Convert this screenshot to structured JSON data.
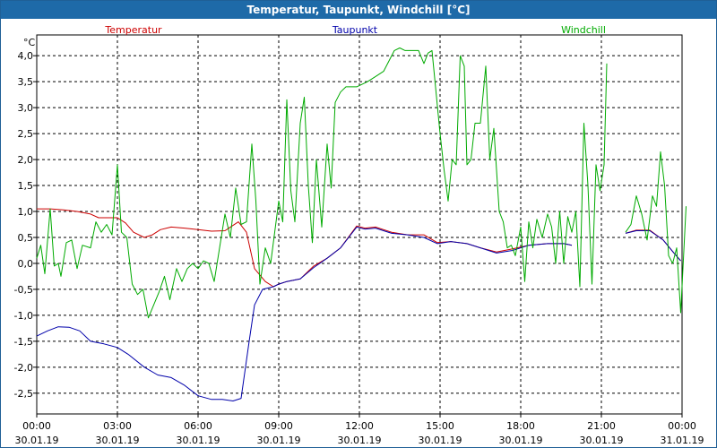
{
  "window": {
    "title": "Temperatur, Taupunkt, Windchill [°C]"
  },
  "chart_data": {
    "type": "line",
    "title": "Temperatur, Taupunkt, Windchill [°C]",
    "ylabel": "°C",
    "ylim": [
      -2.9,
      4.4
    ],
    "xlim_hours": [
      0,
      24
    ],
    "grid": true,
    "legend_position": "top",
    "y_ticks": [
      "4,0",
      "3,5",
      "3,0",
      "2,5",
      "2,0",
      "1,5",
      "1,0",
      "0,5",
      "0,0",
      "-0,5",
      "-1,0",
      "-1,5",
      "-2,0",
      "-2,5"
    ],
    "y_tick_values": [
      4.0,
      3.5,
      3.0,
      2.5,
      2.0,
      1.5,
      1.0,
      0.5,
      0.0,
      -0.5,
      -1.0,
      -1.5,
      -2.0,
      -2.5
    ],
    "x_ticks": [
      {
        "time": "00:00",
        "date": "30.01.19"
      },
      {
        "time": "03:00",
        "date": "30.01.19"
      },
      {
        "time": "06:00",
        "date": "30.01.19"
      },
      {
        "time": "09:00",
        "date": "30.01.19"
      },
      {
        "time": "12:00",
        "date": "30.01.19"
      },
      {
        "time": "15:00",
        "date": "30.01.19"
      },
      {
        "time": "18:00",
        "date": "30.01.19"
      },
      {
        "time": "21:00",
        "date": "30.01.19"
      },
      {
        "time": "00:00",
        "date": "31.01.19"
      }
    ],
    "x_tick_hours": [
      0,
      3,
      6,
      9,
      12,
      15,
      18,
      21,
      24
    ],
    "series": [
      {
        "name": "Temperatur",
        "color": "#cc0000",
        "segments": [
          [
            [
              0,
              1.05
            ],
            [
              0.5,
              1.05
            ],
            [
              1,
              1.03
            ],
            [
              1.5,
              1.0
            ],
            [
              2,
              0.95
            ],
            [
              2.3,
              0.88
            ],
            [
              2.5,
              0.88
            ],
            [
              3,
              0.88
            ],
            [
              3.3,
              0.78
            ],
            [
              3.6,
              0.6
            ],
            [
              4,
              0.5
            ],
            [
              4.3,
              0.55
            ],
            [
              4.6,
              0.65
            ],
            [
              5,
              0.7
            ],
            [
              5.5,
              0.68
            ],
            [
              6,
              0.65
            ],
            [
              6.5,
              0.62
            ],
            [
              7,
              0.63
            ],
            [
              7.5,
              0.8
            ],
            [
              7.8,
              0.6
            ],
            [
              8.1,
              -0.1
            ],
            [
              8.5,
              -0.35
            ],
            [
              8.8,
              -0.45
            ],
            [
              9,
              -0.4
            ],
            [
              9.3,
              -0.35
            ],
            [
              9.8,
              -0.3
            ],
            [
              10.3,
              -0.05
            ],
            [
              10.8,
              0.1
            ],
            [
              11.3,
              0.3
            ],
            [
              11.9,
              0.72
            ],
            [
              12.2,
              0.68
            ],
            [
              12.6,
              0.7
            ],
            [
              13.2,
              0.6
            ],
            [
              13.8,
              0.55
            ],
            [
              14.4,
              0.55
            ],
            [
              14.9,
              0.4
            ],
            [
              15.4,
              0.42
            ],
            [
              16,
              0.38
            ],
            [
              16.5,
              0.3
            ],
            [
              17.1,
              0.22
            ],
            [
              17.7,
              0.28
            ],
            [
              18.3,
              0.35
            ],
            [
              19,
              0.38
            ],
            [
              19.6,
              0.38
            ],
            [
              19.9,
              0.35
            ]
          ],
          [
            [
              21.9,
              0.58
            ],
            [
              22.3,
              0.64
            ],
            [
              22.8,
              0.64
            ],
            [
              23.3,
              0.45
            ],
            [
              23.7,
              0.2
            ],
            [
              23.95,
              0.05
            ]
          ]
        ]
      },
      {
        "name": "Taupunkt",
        "color": "#0000aa",
        "segments": [
          [
            [
              0,
              -1.4
            ],
            [
              0.4,
              -1.3
            ],
            [
              0.8,
              -1.22
            ],
            [
              1.2,
              -1.23
            ],
            [
              1.6,
              -1.3
            ],
            [
              2,
              -1.5
            ],
            [
              2.5,
              -1.55
            ],
            [
              3,
              -1.62
            ],
            [
              3.4,
              -1.75
            ],
            [
              4,
              -2.0
            ],
            [
              4.5,
              -2.15
            ],
            [
              5,
              -2.2
            ],
            [
              5.5,
              -2.35
            ],
            [
              6,
              -2.55
            ],
            [
              6.5,
              -2.62
            ],
            [
              6.9,
              -2.62
            ],
            [
              7.3,
              -2.65
            ],
            [
              7.6,
              -2.6
            ],
            [
              7.9,
              -1.5
            ],
            [
              8.1,
              -0.8
            ],
            [
              8.4,
              -0.5
            ],
            [
              8.8,
              -0.45
            ],
            [
              9,
              -0.4
            ],
            [
              9.3,
              -0.35
            ],
            [
              9.8,
              -0.3
            ],
            [
              10.3,
              -0.08
            ],
            [
              10.8,
              0.1
            ],
            [
              11.3,
              0.3
            ],
            [
              11.9,
              0.7
            ],
            [
              12.2,
              0.66
            ],
            [
              12.6,
              0.68
            ],
            [
              13.2,
              0.58
            ],
            [
              13.8,
              0.55
            ],
            [
              14.4,
              0.5
            ],
            [
              14.9,
              0.38
            ],
            [
              15.4,
              0.42
            ],
            [
              16,
              0.38
            ],
            [
              16.5,
              0.3
            ],
            [
              17.1,
              0.2
            ],
            [
              17.7,
              0.25
            ],
            [
              18.3,
              0.35
            ],
            [
              19,
              0.38
            ],
            [
              19.6,
              0.38
            ],
            [
              19.9,
              0.35
            ]
          ],
          [
            [
              21.9,
              0.58
            ],
            [
              22.3,
              0.63
            ],
            [
              22.8,
              0.63
            ],
            [
              23.3,
              0.45
            ],
            [
              23.7,
              0.2
            ],
            [
              23.95,
              0.05
            ]
          ]
        ]
      },
      {
        "name": "Windchill",
        "color": "#00aa00",
        "segments": [
          [
            [
              0,
              0.1
            ],
            [
              0.15,
              0.35
            ],
            [
              0.3,
              -0.2
            ],
            [
              0.5,
              1.05
            ],
            [
              0.65,
              -0.05
            ],
            [
              0.8,
              0.0
            ],
            [
              0.9,
              -0.25
            ],
            [
              1.1,
              0.4
            ],
            [
              1.3,
              0.45
            ],
            [
              1.5,
              -0.1
            ],
            [
              1.7,
              0.35
            ],
            [
              2,
              0.3
            ],
            [
              2.2,
              0.8
            ],
            [
              2.4,
              0.6
            ],
            [
              2.6,
              0.75
            ],
            [
              2.8,
              0.55
            ],
            [
              3,
              1.9
            ],
            [
              3.15,
              0.6
            ],
            [
              3.35,
              0.5
            ],
            [
              3.55,
              -0.4
            ],
            [
              3.75,
              -0.6
            ],
            [
              3.95,
              -0.5
            ],
            [
              4.15,
              -1.05
            ],
            [
              4.35,
              -0.8
            ],
            [
              4.55,
              -0.55
            ],
            [
              4.75,
              -0.25
            ],
            [
              4.95,
              -0.7
            ],
            [
              5.2,
              -0.1
            ],
            [
              5.4,
              -0.35
            ],
            [
              5.6,
              -0.1
            ],
            [
              5.8,
              0.0
            ],
            [
              6,
              -0.1
            ],
            [
              6.2,
              0.05
            ],
            [
              6.4,
              0.0
            ],
            [
              6.6,
              -0.35
            ],
            [
              6.8,
              0.3
            ],
            [
              7,
              0.95
            ],
            [
              7.2,
              0.5
            ],
            [
              7.4,
              1.45
            ],
            [
              7.6,
              0.75
            ],
            [
              7.8,
              0.8
            ],
            [
              8,
              2.3
            ],
            [
              8.15,
              1.2
            ],
            [
              8.3,
              -0.4
            ],
            [
              8.5,
              0.3
            ],
            [
              8.7,
              0.0
            ],
            [
              8.85,
              0.6
            ],
            [
              9,
              1.2
            ],
            [
              9.15,
              0.8
            ],
            [
              9.3,
              3.15
            ],
            [
              9.45,
              1.4
            ],
            [
              9.6,
              0.8
            ],
            [
              9.8,
              2.7
            ],
            [
              9.95,
              3.2
            ],
            [
              10.1,
              1.5
            ],
            [
              10.25,
              0.4
            ],
            [
              10.4,
              2.0
            ],
            [
              10.6,
              0.7
            ],
            [
              10.8,
              2.3
            ],
            [
              10.95,
              1.45
            ],
            [
              11.1,
              3.1
            ],
            [
              11.3,
              3.3
            ],
            [
              11.5,
              3.4
            ],
            [
              11.9,
              3.4
            ],
            [
              12.3,
              3.5
            ],
            [
              12.6,
              3.6
            ],
            [
              12.9,
              3.7
            ],
            [
              13.1,
              3.9
            ],
            [
              13.3,
              4.1
            ],
            [
              13.5,
              4.15
            ],
            [
              13.7,
              4.1
            ],
            [
              14,
              4.1
            ],
            [
              14.2,
              4.1
            ],
            [
              14.4,
              3.85
            ],
            [
              14.55,
              4.05
            ],
            [
              14.7,
              4.1
            ],
            [
              14.85,
              3.3
            ],
            [
              15,
              2.5
            ],
            [
              15.15,
              1.8
            ],
            [
              15.3,
              1.2
            ],
            [
              15.45,
              2.0
            ],
            [
              15.6,
              1.9
            ],
            [
              15.75,
              4.0
            ],
            [
              15.9,
              3.8
            ],
            [
              16,
              1.9
            ],
            [
              16.15,
              2.0
            ],
            [
              16.3,
              2.7
            ],
            [
              16.5,
              2.7
            ],
            [
              16.7,
              3.8
            ],
            [
              16.85,
              2.0
            ],
            [
              17,
              2.6
            ],
            [
              17.2,
              1.0
            ],
            [
              17.35,
              0.8
            ],
            [
              17.5,
              0.3
            ],
            [
              17.65,
              0.35
            ],
            [
              17.8,
              0.15
            ],
            [
              18,
              0.7
            ],
            [
              18.15,
              -0.35
            ],
            [
              18.3,
              0.8
            ],
            [
              18.45,
              0.3
            ],
            [
              18.6,
              0.85
            ],
            [
              18.8,
              0.5
            ],
            [
              19,
              0.95
            ],
            [
              19.15,
              0.7
            ],
            [
              19.3,
              0.0
            ],
            [
              19.45,
              1.0
            ],
            [
              19.6,
              0.0
            ],
            [
              19.75,
              0.9
            ],
            [
              19.9,
              0.6
            ],
            [
              20.05,
              1.0
            ],
            [
              20.2,
              -0.45
            ],
            [
              20.35,
              2.7
            ],
            [
              20.5,
              1.5
            ],
            [
              20.65,
              -0.4
            ],
            [
              20.8,
              1.9
            ],
            [
              20.95,
              1.4
            ],
            [
              21.1,
              1.9
            ],
            [
              21.2,
              3.85
            ]
          ],
          [
            [
              21.9,
              0.6
            ],
            [
              22.1,
              0.75
            ],
            [
              22.3,
              1.3
            ],
            [
              22.5,
              0.95
            ],
            [
              22.7,
              0.45
            ],
            [
              22.9,
              1.3
            ],
            [
              23.05,
              1.1
            ],
            [
              23.2,
              2.15
            ],
            [
              23.35,
              1.5
            ],
            [
              23.5,
              0.15
            ],
            [
              23.65,
              0.0
            ],
            [
              23.8,
              0.3
            ],
            [
              23.95,
              -0.95
            ],
            [
              24.15,
              1.1
            ]
          ]
        ]
      }
    ]
  }
}
